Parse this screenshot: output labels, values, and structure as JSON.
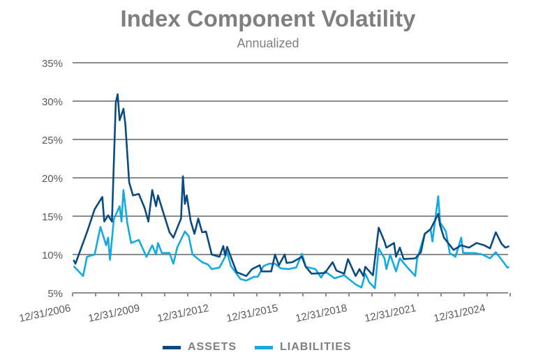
{
  "chart_data": {
    "type": "line",
    "title": "Index Component Volatility",
    "subtitle": "Annualized",
    "xlabel": "",
    "ylabel": "",
    "ylim": [
      5,
      35
    ],
    "yticks": [
      "5%",
      "10%",
      "15%",
      "20%",
      "25%",
      "30%",
      "35%"
    ],
    "xlim": [
      "2006-12-31",
      "2025-12-31"
    ],
    "xticks": [
      "12/31/2006",
      "12/31/2009",
      "12/31/2012",
      "12/31/2015",
      "12/31/2018",
      "12/31/2021",
      "12/31/2024"
    ],
    "grid": true,
    "legend": "bottom",
    "series": [
      {
        "name": "ASSETS",
        "color": "#0b4a80",
        "points": [
          [
            "2007-01",
            9.3
          ],
          [
            "2007-02",
            8.8
          ],
          [
            "2007-08",
            12.9
          ],
          [
            "2007-12",
            15.9
          ],
          [
            "2008-04",
            17.5
          ],
          [
            "2008-05",
            14.3
          ],
          [
            "2008-07",
            15.1
          ],
          [
            "2008-09",
            14.3
          ],
          [
            "2008-11",
            29.8
          ],
          [
            "2008-12",
            30.9
          ],
          [
            "2009-01",
            27.5
          ],
          [
            "2009-03",
            29.0
          ],
          [
            "2009-04",
            27.0
          ],
          [
            "2009-06",
            19.4
          ],
          [
            "2009-08",
            17.7
          ],
          [
            "2009-11",
            17.9
          ],
          [
            "2010-02",
            16.1
          ],
          [
            "2010-04",
            14.3
          ],
          [
            "2010-06",
            18.4
          ],
          [
            "2010-08",
            16.3
          ],
          [
            "2010-09",
            17.7
          ],
          [
            "2010-12",
            15.3
          ],
          [
            "2011-03",
            12.9
          ],
          [
            "2011-05",
            12.2
          ],
          [
            "2011-09",
            14.7
          ],
          [
            "2011-10",
            20.2
          ],
          [
            "2011-11",
            16.6
          ],
          [
            "2011-12",
            17.7
          ],
          [
            "2012-02",
            14.4
          ],
          [
            "2012-04",
            12.7
          ],
          [
            "2012-06",
            14.7
          ],
          [
            "2012-08",
            12.9
          ],
          [
            "2012-10",
            13.0
          ],
          [
            "2013-01",
            10.0
          ],
          [
            "2013-05",
            9.7
          ],
          [
            "2013-07",
            11.1
          ],
          [
            "2013-08",
            9.9
          ],
          [
            "2013-09",
            11.0
          ],
          [
            "2013-12",
            9.0
          ],
          [
            "2014-02",
            7.7
          ],
          [
            "2014-07",
            7.2
          ],
          [
            "2014-10",
            8.1
          ],
          [
            "2015-02",
            8.6
          ],
          [
            "2015-03",
            7.8
          ],
          [
            "2015-08",
            7.8
          ],
          [
            "2015-10",
            10.0
          ],
          [
            "2015-12",
            8.6
          ],
          [
            "2016-03",
            10.0
          ],
          [
            "2016-04",
            8.9
          ],
          [
            "2016-07",
            9.0
          ],
          [
            "2016-12",
            9.7
          ],
          [
            "2017-02",
            8.4
          ],
          [
            "2017-05",
            7.5
          ],
          [
            "2017-12",
            7.6
          ],
          [
            "2018-04",
            9.0
          ],
          [
            "2018-06",
            7.9
          ],
          [
            "2018-10",
            7.5
          ],
          [
            "2018-12",
            9.4
          ],
          [
            "2019-04",
            7.2
          ],
          [
            "2019-06",
            8.1
          ],
          [
            "2019-08",
            7.2
          ],
          [
            "2019-09",
            8.4
          ],
          [
            "2020-01",
            7.3
          ],
          [
            "2020-04",
            13.5
          ],
          [
            "2020-07",
            11.7
          ],
          [
            "2020-08",
            10.9
          ],
          [
            "2020-12",
            11.5
          ],
          [
            "2021-01",
            9.7
          ],
          [
            "2021-03",
            10.9
          ],
          [
            "2021-05",
            9.4
          ],
          [
            "2021-11",
            9.5
          ],
          [
            "2022-02",
            10.3
          ],
          [
            "2022-04",
            12.7
          ],
          [
            "2022-07",
            13.3
          ],
          [
            "2022-11",
            15.3
          ],
          [
            "2022-12",
            13.8
          ],
          [
            "2023-02",
            12.2
          ],
          [
            "2023-07",
            10.6
          ],
          [
            "2023-11",
            11.2
          ],
          [
            "2024-03",
            10.9
          ],
          [
            "2024-07",
            11.5
          ],
          [
            "2024-11",
            11.2
          ],
          [
            "2025-02",
            10.8
          ],
          [
            "2025-05",
            12.9
          ],
          [
            "2025-08",
            11.4
          ],
          [
            "2025-10",
            10.9
          ],
          [
            "2025-12",
            11.1
          ]
        ]
      },
      {
        "name": "LIABILITIES",
        "color": "#14a9e1",
        "points": [
          [
            "2007-01",
            8.5
          ],
          [
            "2007-06",
            7.2
          ],
          [
            "2007-08",
            9.7
          ],
          [
            "2007-12",
            10.0
          ],
          [
            "2008-03",
            13.6
          ],
          [
            "2008-06",
            11.2
          ],
          [
            "2008-07",
            12.2
          ],
          [
            "2008-08",
            9.3
          ],
          [
            "2008-10",
            14.6
          ],
          [
            "2009-01",
            16.3
          ],
          [
            "2009-02",
            14.3
          ],
          [
            "2009-03",
            18.4
          ],
          [
            "2009-05",
            14.1
          ],
          [
            "2009-07",
            11.5
          ],
          [
            "2009-11",
            11.9
          ],
          [
            "2010-01",
            10.8
          ],
          [
            "2010-03",
            9.7
          ],
          [
            "2010-06",
            11.2
          ],
          [
            "2010-08",
            10.0
          ],
          [
            "2010-09",
            11.5
          ],
          [
            "2010-11",
            10.2
          ],
          [
            "2011-03",
            10.2
          ],
          [
            "2011-05",
            8.8
          ],
          [
            "2011-07",
            10.9
          ],
          [
            "2011-11",
            13.0
          ],
          [
            "2012-01",
            12.4
          ],
          [
            "2012-03",
            10.0
          ],
          [
            "2012-08",
            9.0
          ],
          [
            "2012-11",
            8.7
          ],
          [
            "2013-01",
            8.1
          ],
          [
            "2013-05",
            8.3
          ],
          [
            "2013-08",
            9.7
          ],
          [
            "2013-09",
            10.3
          ],
          [
            "2013-11",
            8.5
          ],
          [
            "2014-04",
            6.8
          ],
          [
            "2014-07",
            6.6
          ],
          [
            "2014-11",
            7.1
          ],
          [
            "2015-01",
            7.1
          ],
          [
            "2015-04",
            8.5
          ],
          [
            "2015-07",
            8.8
          ],
          [
            "2015-10",
            8.8
          ],
          [
            "2016-01",
            8.2
          ],
          [
            "2016-05",
            8.1
          ],
          [
            "2016-09",
            8.3
          ],
          [
            "2016-12",
            10.1
          ],
          [
            "2017-02",
            8.4
          ],
          [
            "2017-07",
            8.1
          ],
          [
            "2017-10",
            7.0
          ],
          [
            "2017-12",
            7.8
          ],
          [
            "2018-05",
            6.9
          ],
          [
            "2018-10",
            7.3
          ],
          [
            "2019-04",
            6.1
          ],
          [
            "2019-07",
            5.7
          ],
          [
            "2019-09",
            7.5
          ],
          [
            "2019-11",
            6.4
          ],
          [
            "2020-02",
            5.6
          ],
          [
            "2020-04",
            10.8
          ],
          [
            "2020-07",
            9.5
          ],
          [
            "2020-08",
            8.1
          ],
          [
            "2020-10",
            10.0
          ],
          [
            "2021-01",
            7.8
          ],
          [
            "2021-03",
            9.5
          ],
          [
            "2021-07",
            8.3
          ],
          [
            "2021-11",
            7.2
          ],
          [
            "2021-12",
            9.4
          ],
          [
            "2022-04",
            12.7
          ],
          [
            "2022-07",
            13.3
          ],
          [
            "2022-08",
            11.7
          ],
          [
            "2022-11",
            17.6
          ],
          [
            "2022-12",
            14.2
          ],
          [
            "2023-03",
            13.0
          ],
          [
            "2023-05",
            10.2
          ],
          [
            "2023-08",
            9.7
          ],
          [
            "2023-11",
            12.2
          ],
          [
            "2023-12",
            10.2
          ],
          [
            "2024-06",
            10.2
          ],
          [
            "2024-10",
            10.0
          ],
          [
            "2025-02",
            9.5
          ],
          [
            "2025-05",
            10.3
          ],
          [
            "2025-09",
            9.0
          ],
          [
            "2025-11",
            8.3
          ],
          [
            "2025-12",
            8.4
          ]
        ]
      }
    ]
  }
}
